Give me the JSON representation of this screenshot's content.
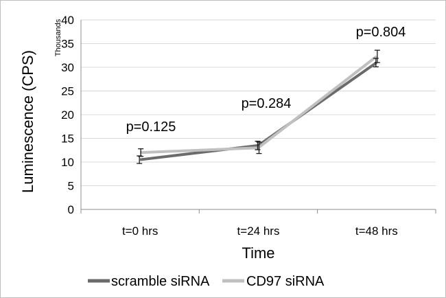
{
  "chart_data": {
    "type": "line",
    "categories": [
      "t=0 hrs",
      "t=24 hrs",
      "t=48 hrs"
    ],
    "xlabel": "Time",
    "ylabel": "Luminescence (CPS)",
    "yunit": "Thousands",
    "ylim": [
      0,
      40
    ],
    "yticks": [
      0,
      5,
      10,
      15,
      20,
      25,
      30,
      35,
      40
    ],
    "grid": true,
    "legend_position": "bottom",
    "series": [
      {
        "name": "scramble siRNA",
        "color": "#6b6b6b",
        "values": [
          10.5,
          13.5,
          31.0
        ],
        "errors": [
          0.8,
          0.9,
          0.9
        ]
      },
      {
        "name": "CD97 siRNA",
        "color": "#c0c0c0",
        "values": [
          12.0,
          13.0,
          32.3
        ],
        "errors": [
          0.8,
          1.2,
          1.3
        ]
      }
    ],
    "annotations": [
      "p=0.125",
      "p=0.284",
      "p=0.804"
    ]
  }
}
